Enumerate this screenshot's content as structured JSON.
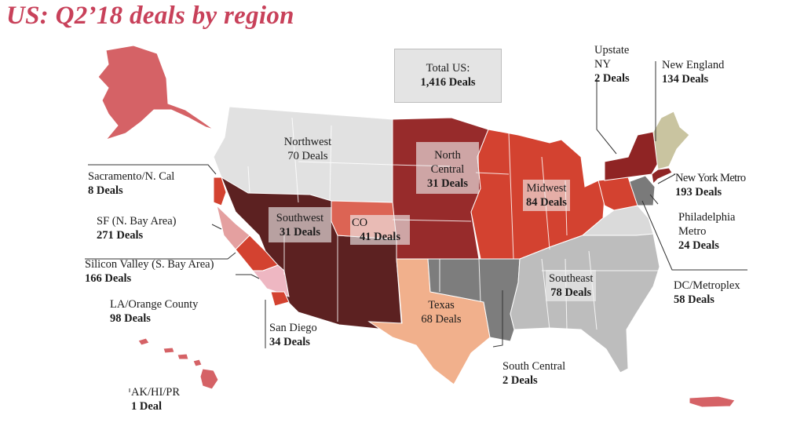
{
  "title": "US: Q2’18 deals by region",
  "total": {
    "name": "Total US:",
    "deals": "1,416 Deals"
  },
  "regions": {
    "upstate_ny": {
      "name1": "Upstate",
      "name2": "NY",
      "deals": "2 Deals",
      "color": "#8f2424"
    },
    "new_england": {
      "name": "New England",
      "deals": "134 Deals",
      "color": "#c9c4a0"
    },
    "new_york_metro": {
      "name": "New York Metro",
      "deals": "193 Deals",
      "color": "#8f2424"
    },
    "philadelphia_metro": {
      "name1": "Philadelphia",
      "name2": "Metro",
      "deals": "24 Deals",
      "color": "#7a7a7a"
    },
    "dc_metroplex": {
      "name": "DC/Metroplex",
      "deals": "58 Deals",
      "color": "#dadada"
    },
    "south_central": {
      "name": "South Central",
      "deals": "2 Deals",
      "color": "#7d7d7d"
    },
    "southeast": {
      "name": "Southeast",
      "deals": "78 Deals",
      "color": "#bdbdbd"
    },
    "texas": {
      "name": "Texas",
      "deals": "68 Deals",
      "color": "#f1b08c"
    },
    "midwest": {
      "name": "Midwest",
      "deals": "84 Deals",
      "color": "#d34230"
    },
    "north_central": {
      "name1": "North",
      "name2": "Central",
      "deals": "31 Deals",
      "color": "#972b2b"
    },
    "northwest": {
      "name": "Northwest",
      "deals": "70 Deals",
      "color": "#e1e1e1"
    },
    "southwest": {
      "name": "Southwest",
      "deals": "31 Deals",
      "color": "#5c2121"
    },
    "co": {
      "name": "CO",
      "deals": "41 Deals",
      "color": "#dc6454"
    },
    "sacramento": {
      "name": "Sacramento/N. Cal",
      "deals": "8 Deals",
      "color": "#d34230"
    },
    "sf": {
      "name": "SF (N. Bay Area)",
      "deals": "271 Deals",
      "color": "#e4a0a0"
    },
    "silicon_valley": {
      "name": "Silicon Valley (S. Bay Area)",
      "deals": "166 Deals",
      "color": "#d34230"
    },
    "la_orange": {
      "name": "LA/Orange County",
      "deals": "98 Deals",
      "color": "#eeb7c2"
    },
    "san_diego": {
      "name": "San Diego",
      "deals": "34 Deals",
      "color": "#d34230"
    },
    "ak_hi_pr": {
      "name": "AK/HI/PR",
      "deals": "1 Deal",
      "color": "#d56266"
    }
  }
}
